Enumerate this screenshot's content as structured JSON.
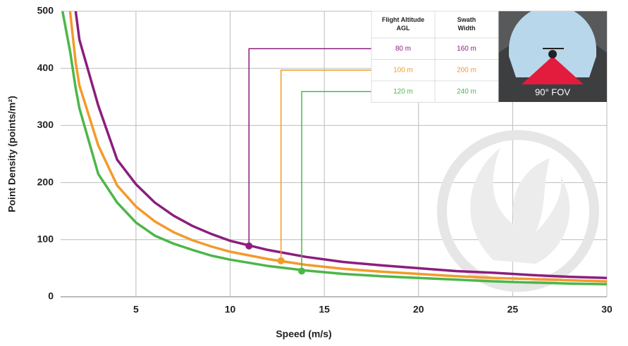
{
  "chart_data": {
    "type": "line",
    "xlabel": "Speed (m/s)",
    "ylabel": "Point Density (points/m²)",
    "x": [
      1.1,
      1.5,
      1.8,
      2,
      3,
      4,
      5,
      6,
      7,
      8,
      9,
      10,
      12,
      14,
      16,
      18,
      20,
      22,
      24,
      26,
      28,
      30
    ],
    "series": [
      {
        "color": "#8b1e7e",
        "values": [
          null,
          null,
          500,
          450,
          335,
          240,
          197,
          165,
          142,
          124,
          110,
          98,
          82,
          70,
          61,
          55,
          50,
          45,
          42,
          38,
          35,
          33
        ]
      },
      {
        "color": "#f39a2b",
        "values": [
          null,
          500,
          410,
          370,
          265,
          195,
          158,
          132,
          113,
          99,
          88,
          79,
          66,
          56,
          49,
          44,
          40,
          36,
          33,
          31,
          29,
          27
        ]
      },
      {
        "color": "#4cb748",
        "values": [
          500,
          430,
          365,
          330,
          215,
          165,
          130,
          107,
          93,
          82,
          72,
          65,
          54,
          46,
          40,
          36,
          33,
          30,
          27,
          25,
          23,
          22
        ]
      }
    ],
    "markers": [
      {
        "x": 11,
        "y": 89
      },
      {
        "x": 12.7,
        "y": 63
      },
      {
        "x": 13.8,
        "y": 45
      }
    ],
    "xlim": [
      1,
      30
    ],
    "ylim": [
      0,
      500
    ],
    "xticks": [
      5,
      10,
      15,
      20,
      25,
      30
    ],
    "yticks": [
      0,
      100,
      200,
      300,
      400,
      500
    ],
    "grid": true,
    "table": {
      "header": [
        "Flight Altitude AGL",
        "Swath Width"
      ],
      "rows": [
        [
          "80 m",
          "160 m"
        ],
        [
          "100 m",
          "200 m"
        ],
        [
          "120 m",
          "240 m"
        ]
      ]
    },
    "fov_label": "90° FOV"
  }
}
